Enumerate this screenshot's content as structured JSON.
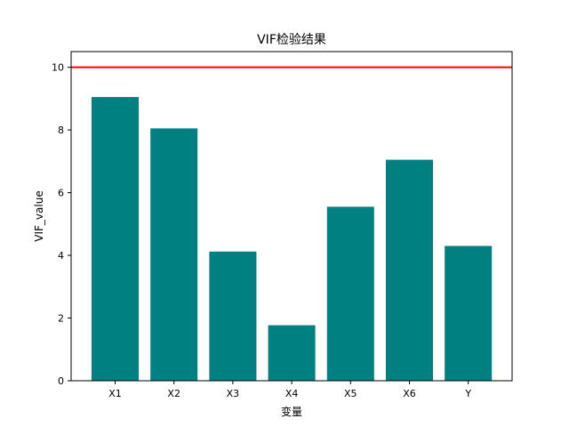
{
  "chart_data": {
    "type": "bar",
    "title": "VIF检验结果",
    "xlabel": "变量",
    "ylabel": "VIF_value",
    "categories": [
      "X1",
      "X2",
      "X3",
      "X4",
      "X5",
      "X6",
      "Y"
    ],
    "values": [
      9.05,
      8.05,
      4.12,
      1.77,
      5.55,
      7.05,
      4.3
    ],
    "ylim": [
      0,
      10.5
    ],
    "yticks": [
      "0",
      "2",
      "4",
      "6",
      "8",
      "10"
    ],
    "threshold": 10,
    "grid": false,
    "bar_color": "#008080",
    "threshold_color": "#ff0000"
  }
}
